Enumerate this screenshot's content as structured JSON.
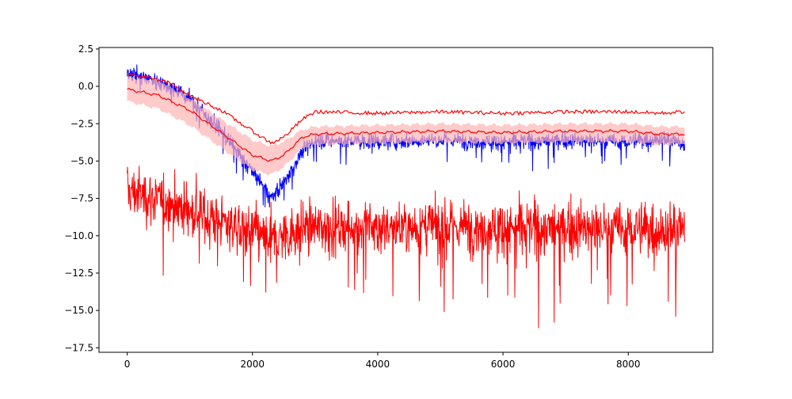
{
  "chart_data": {
    "type": "line",
    "title": "",
    "xlabel": "",
    "ylabel": "",
    "xlim": [
      -450,
      9350
    ],
    "ylim": [
      -17.8,
      2.6
    ],
    "xticks": [
      0,
      2000,
      4000,
      6000,
      8000
    ],
    "xtick_labels": [
      "0",
      "2000",
      "4000",
      "6000",
      "8000"
    ],
    "yticks": [
      2.5,
      0.0,
      -2.5,
      -5.0,
      -7.5,
      -10.0,
      -12.5,
      -15.0,
      -17.5
    ],
    "ytick_labels": [
      "2.5",
      "0.0",
      "−2.5",
      "−5.0",
      "−7.5",
      "−10.0",
      "−12.5",
      "−15.0",
      "−17.5"
    ],
    "grid": false,
    "legend": false,
    "colors": {
      "noisy_red": "#ff0000",
      "noisy_blue": "#0000ff",
      "mean_line": "#ff0000",
      "band_fill": "#ffb3b3"
    },
    "series": [
      {
        "style": "noisy",
        "color": "#ff0000",
        "x": [
          0,
          500,
          1000,
          1500,
          2000,
          2300,
          2500,
          2800,
          3000,
          4000,
          5000,
          6000,
          7000,
          8000,
          8500,
          8900
        ],
        "y": [
          -7.0,
          -7.6,
          -8.3,
          -9.0,
          -9.8,
          -10.3,
          -10.0,
          -9.4,
          -9.4,
          -9.4,
          -9.4,
          -9.4,
          -9.5,
          -9.5,
          -9.6,
          -9.6
        ],
        "spread": 1.5,
        "min": -16.8,
        "max": -4.6
      },
      {
        "style": "noisy",
        "color": "#0000ff",
        "x": [
          0,
          300,
          700,
          1000,
          1500,
          2000,
          2300,
          2500,
          2800,
          3000,
          4000,
          5000,
          6000,
          7000,
          8000,
          8500,
          8900
        ],
        "y": [
          1.0,
          0.6,
          0.0,
          -0.8,
          -3.0,
          -5.7,
          -7.4,
          -6.5,
          -4.3,
          -3.6,
          -3.7,
          -3.6,
          -3.7,
          -3.6,
          -3.7,
          -3.5,
          -3.8
        ],
        "spread": 0.45,
        "min": -8.5,
        "max": 2.2
      },
      {
        "style": "band_with_mean",
        "color": "#ff0000",
        "x": [
          0,
          500,
          1000,
          1500,
          2000,
          2300,
          2500,
          2800,
          3000,
          4000,
          5000,
          6000,
          7000,
          8000,
          8500,
          8900
        ],
        "mean": [
          -0.2,
          -0.6,
          -1.6,
          -3.1,
          -4.6,
          -5.0,
          -4.6,
          -3.4,
          -3.2,
          -3.1,
          -3.0,
          -3.1,
          -3.0,
          -3.0,
          -3.2,
          -3.2
        ],
        "lower": [
          -1.0,
          -1.5,
          -2.6,
          -4.1,
          -5.6,
          -5.9,
          -5.4,
          -4.1,
          -3.9,
          -3.8,
          -3.7,
          -3.8,
          -3.7,
          -3.7,
          -3.9,
          -3.8
        ],
        "upper": [
          0.6,
          0.4,
          -0.8,
          -2.2,
          -3.6,
          -4.0,
          -3.7,
          -2.9,
          -2.7,
          -2.6,
          -2.5,
          -2.6,
          -2.5,
          -2.5,
          -2.7,
          -2.7
        ]
      },
      {
        "style": "line",
        "color": "#ff0000",
        "x": [
          0,
          300,
          700,
          1000,
          1500,
          2000,
          2300,
          2500,
          2800,
          3000,
          4000,
          5000,
          6000,
          7000,
          8000,
          8500,
          8900
        ],
        "y": [
          0.8,
          0.6,
          0.2,
          -0.6,
          -1.6,
          -3.0,
          -3.8,
          -3.4,
          -2.2,
          -1.7,
          -1.8,
          -1.7,
          -1.8,
          -1.7,
          -1.7,
          -1.8,
          -1.7
        ],
        "jitter": 0.12
      }
    ]
  }
}
